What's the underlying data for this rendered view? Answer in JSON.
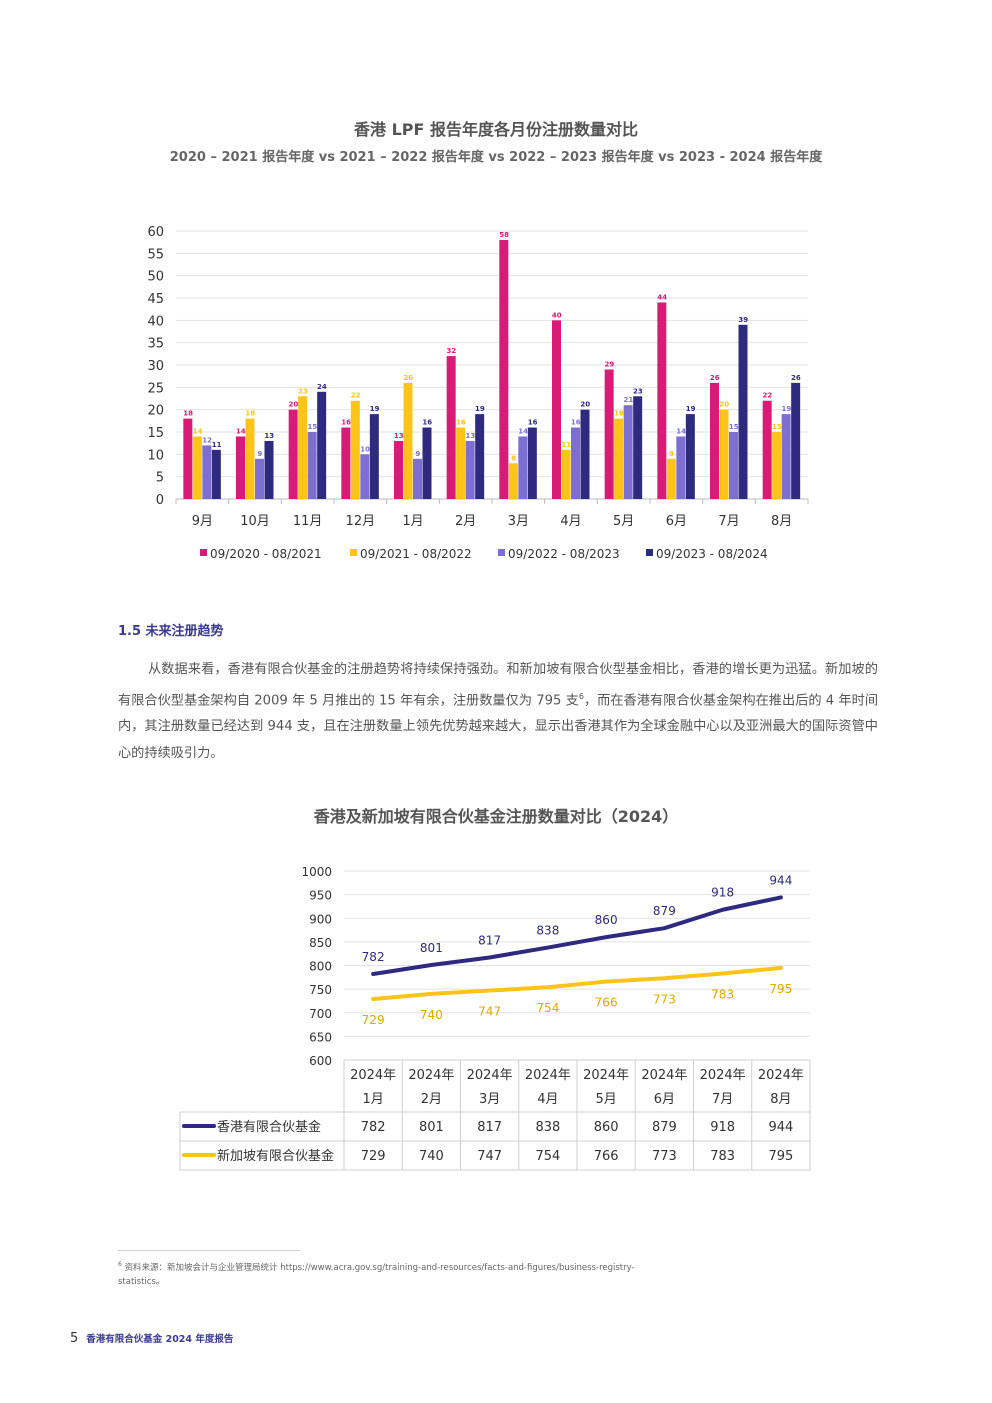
{
  "chart1": {
    "title": "香港 LPF 报告年度各月份注册数量对比",
    "subtitle": "2020 – 2021 报告年度 vs 2021 – 2022 报告年度 vs 2022 – 2023 报告年度 vs 2023 - 2024 报告年度"
  },
  "section": {
    "heading": "1.5 未来注册趋势",
    "paragraph_part1": "从数据来看，香港有限合伙基金的注册趋势将持续保持强劲。和新加坡有限合伙型基金相比，香港的增长更为迅猛。新加坡的有限合伙型基金架构自 2009 年 5 月推出的 15 年有余，注册数量仅为 795 支",
    "footnote_ref": "6",
    "paragraph_part2": "，而在香港有限合伙基金架构在推出后的 4 年时间内，其注册数量已经达到 944 支，且在注册数量上领先优势越来越大，显示出香港其作为全球金融中心以及亚洲最大的国际资管中心的持续吸引力。"
  },
  "chart2": {
    "title": "香港及新加坡有限合伙基金注册数量对比（2024）"
  },
  "footnote": {
    "number": "6",
    "text": "资料来源：新加坡会计与企业管理局统计 https://www.acra.gov.sg/training-and-resources/facts-and-figures/business-registry-statistics。"
  },
  "footer": {
    "page_number": "5",
    "text": "香港有限合伙基金 2024 年度报告"
  },
  "chart_data": [
    {
      "type": "bar",
      "title": "香港 LPF 报告年度各月份注册数量对比",
      "subtitle": "2020 – 2021 报告年度 vs 2021 – 2022 报告年度 vs 2022 – 2023 报告年度 vs 2023 - 2024 报告年度",
      "categories": [
        "9月",
        "10月",
        "11月",
        "12月",
        "1月",
        "2月",
        "3月",
        "4月",
        "5月",
        "6月",
        "7月",
        "8月"
      ],
      "series": [
        {
          "name": "09/2020 - 08/2021",
          "color": "#d81b77",
          "values": [
            18,
            14,
            20,
            16,
            13,
            32,
            58,
            40,
            29,
            44,
            26,
            22
          ]
        },
        {
          "name": "09/2021 - 08/2022",
          "color": "#fcc419",
          "values": [
            14,
            18,
            23,
            22,
            26,
            16,
            8,
            11,
            18,
            9,
            20,
            15
          ]
        },
        {
          "name": "09/2022 - 08/2023",
          "color": "#7c6fd1",
          "values": [
            12,
            9,
            15,
            10,
            9,
            13,
            14,
            16,
            21,
            14,
            15,
            19
          ]
        },
        {
          "name": "09/2023 - 08/2024",
          "color": "#2e2a80",
          "values": [
            11,
            13,
            24,
            19,
            16,
            19,
            16,
            20,
            23,
            19,
            39,
            26
          ]
        }
      ],
      "ylim": [
        0,
        60
      ],
      "yticks": [
        0,
        5,
        10,
        15,
        20,
        25,
        30,
        35,
        40,
        45,
        50,
        55,
        60
      ],
      "grid": true,
      "legend": "bottom"
    },
    {
      "type": "line",
      "title": "香港及新加坡有限合伙基金注册数量对比（2024）",
      "categories": [
        [
          "2024年",
          "1月"
        ],
        [
          "2024年",
          "2月"
        ],
        [
          "2024年",
          "3月"
        ],
        [
          "2024年",
          "4月"
        ],
        [
          "2024年",
          "5月"
        ],
        [
          "2024年",
          "6月"
        ],
        [
          "2024年",
          "7月"
        ],
        [
          "2024年",
          "8月"
        ]
      ],
      "series": [
        {
          "name": "香港有限合伙基金",
          "color": "#2e2a80",
          "values": [
            782,
            801,
            817,
            838,
            860,
            879,
            918,
            944
          ]
        },
        {
          "name": "新加坡有限合伙基金",
          "color": "#fcc419",
          "values": [
            729,
            740,
            747,
            754,
            766,
            773,
            783,
            795
          ]
        }
      ],
      "ylim": [
        600,
        1000
      ],
      "yticks": [
        600,
        650,
        700,
        750,
        800,
        850,
        900,
        950,
        1000
      ],
      "grid": true,
      "legend": "data-table"
    }
  ]
}
